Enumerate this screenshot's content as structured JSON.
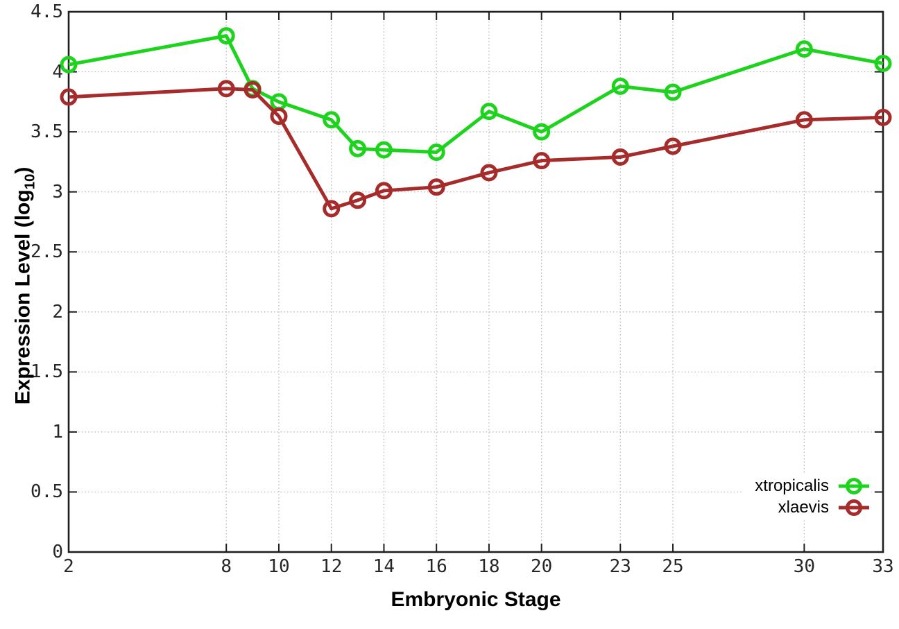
{
  "chart_data": {
    "type": "line",
    "title": "",
    "xlabel": "Embryonic Stage",
    "ylabel": "Expression Level (log10)",
    "ylabel_parts": {
      "prefix": "Expression Level (log",
      "sub": "10",
      "suffix": ")"
    },
    "x": [
      2,
      8,
      9,
      10,
      12,
      13,
      14,
      16,
      18,
      20,
      23,
      25,
      30,
      33
    ],
    "series": [
      {
        "name": "xtropicalis",
        "color": "#1ed31e",
        "marker": "open-circle",
        "values": [
          4.06,
          4.3,
          3.86,
          3.75,
          3.6,
          3.36,
          3.35,
          3.33,
          3.67,
          3.5,
          3.88,
          3.83,
          4.19,
          4.07
        ]
      },
      {
        "name": "xlaevis",
        "color": "#a62c2c",
        "marker": "open-circle",
        "values": [
          3.79,
          3.86,
          3.85,
          3.63,
          2.86,
          2.93,
          3.01,
          3.04,
          3.16,
          3.26,
          3.29,
          3.38,
          3.6,
          3.62
        ]
      }
    ],
    "xticks": [
      2,
      8,
      10,
      12,
      14,
      16,
      18,
      20,
      23,
      25,
      30,
      33
    ],
    "xtick_labels": [
      "2",
      "8",
      "10",
      "12",
      "14",
      "16",
      "18",
      "20",
      "23",
      "25",
      "30",
      "33"
    ],
    "yticks": [
      0,
      0.5,
      1,
      1.5,
      2,
      2.5,
      3,
      3.5,
      4,
      4.5
    ],
    "ytick_labels": [
      "0",
      "0.5",
      "1",
      "1.5",
      "2",
      "2.5",
      "3",
      "3.5",
      "4",
      "4.5"
    ],
    "xlim": [
      2,
      33
    ],
    "ylim": [
      0,
      4.5
    ],
    "grid": "dotted",
    "legend_position": "inside-bottom-right",
    "colors": {
      "background": "#ffffff",
      "grid": "#b0b0b0",
      "axis": "#1f1f1f",
      "tick_label": "#262626",
      "axis_title": "#000000"
    }
  }
}
